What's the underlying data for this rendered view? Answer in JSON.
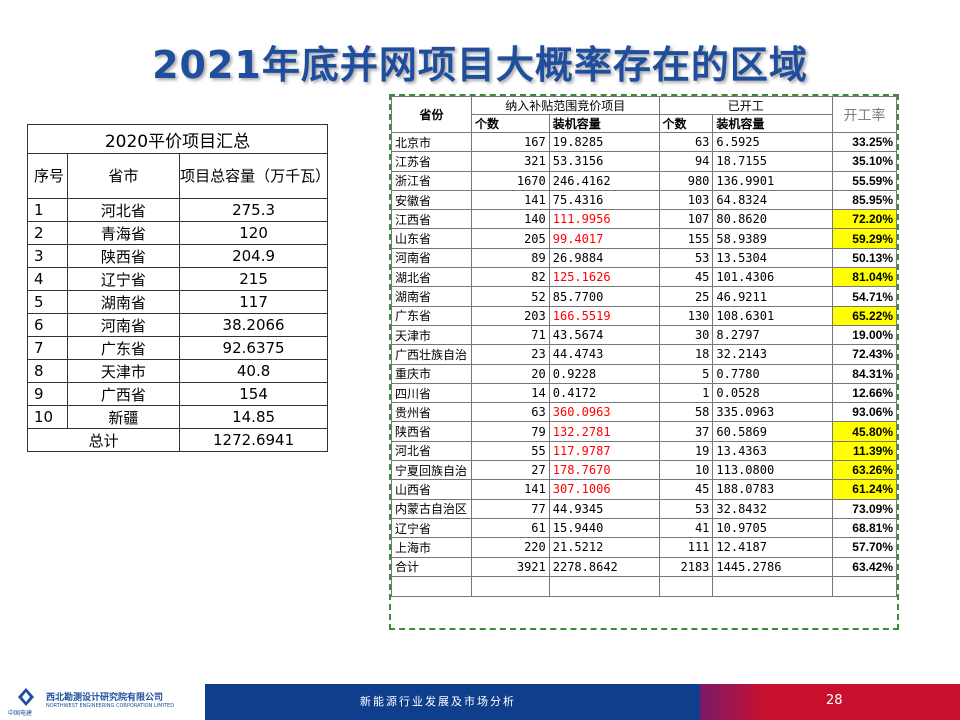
{
  "title": "2021年底并网项目大概率存在的区域",
  "left_table": {
    "caption": "2020平价项目汇总",
    "headers": {
      "index": "序号",
      "province": "省市",
      "capacity": "项目总容量（万千瓦）"
    },
    "rows": [
      {
        "idx": "1",
        "province": "河北省",
        "capacity": "275.3"
      },
      {
        "idx": "2",
        "province": "青海省",
        "capacity": "120"
      },
      {
        "idx": "3",
        "province": "陕西省",
        "capacity": "204.9"
      },
      {
        "idx": "4",
        "province": "辽宁省",
        "capacity": "215"
      },
      {
        "idx": "5",
        "province": "湖南省",
        "capacity": "117"
      },
      {
        "idx": "6",
        "province": "河南省",
        "capacity": "38.2066"
      },
      {
        "idx": "7",
        "province": "广东省",
        "capacity": "92.6375"
      },
      {
        "idx": "8",
        "province": "天津市",
        "capacity": "40.8"
      },
      {
        "idx": "9",
        "province": "广西省",
        "capacity": "154"
      },
      {
        "idx": "10",
        "province": "新疆",
        "capacity": "14.85"
      }
    ],
    "total_label": "总计",
    "total_value": "1272.6941"
  },
  "right_table": {
    "header_province": "省份",
    "header_group1": "纳入补贴范围竞价项目",
    "header_group2": "已开工",
    "header_rate": "开工率",
    "sub_count": "个数",
    "sub_capacity": "装机容量",
    "rows": [
      {
        "province": "北京市",
        "count": "167",
        "capacity": "19.8285",
        "started_count": "63",
        "started_capacity": "6.5925",
        "rate": "33.25%",
        "highlight": false,
        "red": false
      },
      {
        "province": "江苏省",
        "count": "321",
        "capacity": "53.3156",
        "started_count": "94",
        "started_capacity": "18.7155",
        "rate": "35.10%",
        "highlight": false,
        "red": false
      },
      {
        "province": "浙江省",
        "count": "1670",
        "capacity": "246.4162",
        "started_count": "980",
        "started_capacity": "136.9901",
        "rate": "55.59%",
        "highlight": false,
        "red": false
      },
      {
        "province": "安徽省",
        "count": "141",
        "capacity": "75.4316",
        "started_count": "103",
        "started_capacity": "64.8324",
        "rate": "85.95%",
        "highlight": false,
        "red": false
      },
      {
        "province": "江西省",
        "count": "140",
        "capacity": "111.9956",
        "started_count": "107",
        "started_capacity": "80.8620",
        "rate": "72.20%",
        "highlight": true,
        "red": true
      },
      {
        "province": "山东省",
        "count": "205",
        "capacity": "99.4017",
        "started_count": "155",
        "started_capacity": "58.9389",
        "rate": "59.29%",
        "highlight": true,
        "red": true
      },
      {
        "province": "河南省",
        "count": "89",
        "capacity": "26.9884",
        "started_count": "53",
        "started_capacity": "13.5304",
        "rate": "50.13%",
        "highlight": false,
        "red": false
      },
      {
        "province": "湖北省",
        "count": "82",
        "capacity": "125.1626",
        "started_count": "45",
        "started_capacity": "101.4306",
        "rate": "81.04%",
        "highlight": true,
        "red": true
      },
      {
        "province": "湖南省",
        "count": "52",
        "capacity": "85.7700",
        "started_count": "25",
        "started_capacity": "46.9211",
        "rate": "54.71%",
        "highlight": false,
        "red": false
      },
      {
        "province": "广东省",
        "count": "203",
        "capacity": "166.5519",
        "started_count": "130",
        "started_capacity": "108.6301",
        "rate": "65.22%",
        "highlight": true,
        "red": true
      },
      {
        "province": "天津市",
        "count": "71",
        "capacity": "43.5674",
        "started_count": "30",
        "started_capacity": "8.2797",
        "rate": "19.00%",
        "highlight": false,
        "red": false
      },
      {
        "province": "广西壮族自治",
        "count": "23",
        "capacity": "44.4743",
        "started_count": "18",
        "started_capacity": "32.2143",
        "rate": "72.43%",
        "highlight": false,
        "red": false
      },
      {
        "province": "重庆市",
        "count": "20",
        "capacity": "0.9228",
        "started_count": "5",
        "started_capacity": "0.7780",
        "rate": "84.31%",
        "highlight": false,
        "red": false
      },
      {
        "province": "四川省",
        "count": "14",
        "capacity": "0.4172",
        "started_count": "1",
        "started_capacity": "0.0528",
        "rate": "12.66%",
        "highlight": false,
        "red": false
      },
      {
        "province": "贵州省",
        "count": "63",
        "capacity": "360.0963",
        "started_count": "58",
        "started_capacity": "335.0963",
        "rate": "93.06%",
        "highlight": false,
        "red": true
      },
      {
        "province": "陕西省",
        "count": "79",
        "capacity": "132.2781",
        "started_count": "37",
        "started_capacity": "60.5869",
        "rate": "45.80%",
        "highlight": true,
        "red": true
      },
      {
        "province": "河北省",
        "count": "55",
        "capacity": "117.9787",
        "started_count": "19",
        "started_capacity": "13.4363",
        "rate": "11.39%",
        "highlight": true,
        "red": true
      },
      {
        "province": "宁夏回族自治",
        "count": "27",
        "capacity": "178.7670",
        "started_count": "10",
        "started_capacity": "113.0800",
        "rate": "63.26%",
        "highlight": true,
        "red": true
      },
      {
        "province": "山西省",
        "count": "141",
        "capacity": "307.1006",
        "started_count": "45",
        "started_capacity": "188.0783",
        "rate": "61.24%",
        "highlight": true,
        "red": true
      },
      {
        "province": "内蒙古自治区",
        "count": "77",
        "capacity": "44.9345",
        "started_count": "53",
        "started_capacity": "32.8432",
        "rate": "73.09%",
        "highlight": false,
        "red": false
      },
      {
        "province": "辽宁省",
        "count": "61",
        "capacity": "15.9440",
        "started_count": "41",
        "started_capacity": "10.9705",
        "rate": "68.81%",
        "highlight": false,
        "red": false
      },
      {
        "province": "上海市",
        "count": "220",
        "capacity": "21.5212",
        "started_count": "111",
        "started_capacity": "12.4187",
        "rate": "57.70%",
        "highlight": false,
        "red": false
      },
      {
        "province": "合计",
        "count": "3921",
        "capacity": "2278.8642",
        "started_count": "2183",
        "started_capacity": "1445.2786",
        "rate": "63.42%",
        "highlight": false,
        "red": false
      }
    ]
  },
  "footer": {
    "company_cn": "西北勘测设计研究院有限公司",
    "company_en": "NORTHWEST ENGINEERING CORPORATION LIMITED",
    "brand": "中国电建",
    "subtitle": "新能源行业发展及市场分析",
    "page_number": "28",
    "colors": {
      "blue": "#0f3f8c",
      "red": "#c8102e",
      "title": "#1f4e9c",
      "highlight": "#ffff00"
    }
  }
}
